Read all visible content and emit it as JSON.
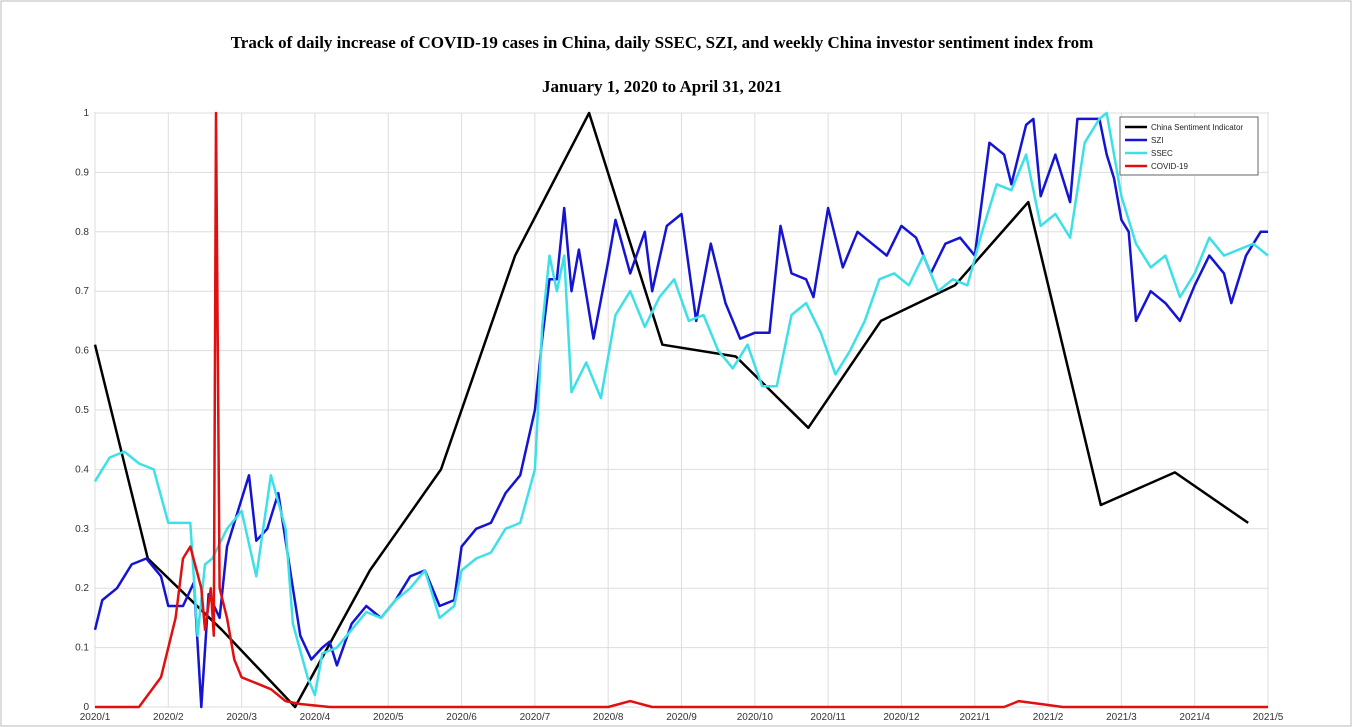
{
  "chart_data": {
    "type": "line",
    "title": "Track of daily increase of COVID-19 cases in China, daily SSEC, SZI, and weekly China investor sentiment index from",
    "subtitle": "January 1, 2020 to April 31, 2021",
    "xlim": [
      0,
      16
    ],
    "xticks": [
      {
        "value": 0,
        "label": "2020/1"
      },
      {
        "value": 1,
        "label": "2020/2"
      },
      {
        "value": 2,
        "label": "2020/3"
      },
      {
        "value": 3,
        "label": "2020/4"
      },
      {
        "value": 4,
        "label": "2020/5"
      },
      {
        "value": 5,
        "label": "2020/6"
      },
      {
        "value": 6,
        "label": "2020/7"
      },
      {
        "value": 7,
        "label": "2020/8"
      },
      {
        "value": 8,
        "label": "2020/9"
      },
      {
        "value": 9,
        "label": "2020/10"
      },
      {
        "value": 10,
        "label": "2020/11"
      },
      {
        "value": 11,
        "label": "2020/12"
      },
      {
        "value": 12,
        "label": "2021/1"
      },
      {
        "value": 13,
        "label": "2021/2"
      },
      {
        "value": 14,
        "label": "2021/3"
      },
      {
        "value": 15,
        "label": "2021/4"
      },
      {
        "value": 16,
        "label": "2021/5"
      }
    ],
    "ylim": [
      0,
      1
    ],
    "yticks": [
      0,
      0.1,
      0.2,
      0.3,
      0.4,
      0.5,
      0.6,
      0.7,
      0.8,
      0.9,
      1
    ],
    "grid": true,
    "legend": "upper-right",
    "series": [
      {
        "name": "China Sentiment Indicator",
        "color": "#000000",
        "x": [
          0,
          0.72,
          1.73,
          2.73,
          3.75,
          4.72,
          5.73,
          6.74,
          7.74,
          8.74,
          9.73,
          10.72,
          11.73,
          12.73,
          13.72,
          14.73,
          15.73
        ],
        "values": [
          0.61,
          0.25,
          0.13,
          0,
          0.23,
          0.4,
          0.76,
          1,
          0.61,
          0.59,
          0.47,
          0.65,
          0.71,
          0.85,
          0.34,
          0.395,
          0.31
        ]
      },
      {
        "name": "SZI",
        "color": "#1414d2",
        "x": [
          0,
          0.1,
          0.3,
          0.5,
          0.7,
          0.9,
          1,
          1.2,
          1.35,
          1.45,
          1.55,
          1.7,
          1.8,
          2,
          2.1,
          2.2,
          2.35,
          2.5,
          2.7,
          2.8,
          2.95,
          3.1,
          3.2,
          3.3,
          3.5,
          3.7,
          3.9,
          4.1,
          4.3,
          4.5,
          4.7,
          4.9,
          5,
          5.2,
          5.4,
          5.6,
          5.8,
          6,
          6.1,
          6.2,
          6.3,
          6.4,
          6.5,
          6.6,
          6.8,
          7,
          7.1,
          7.3,
          7.5,
          7.6,
          7.8,
          8,
          8.2,
          8.4,
          8.6,
          8.8,
          9,
          9.2,
          9.35,
          9.5,
          9.7,
          9.8,
          10,
          10.2,
          10.4,
          10.6,
          10.8,
          11,
          11.2,
          11.4,
          11.6,
          11.8,
          12,
          12.2,
          12.4,
          12.5,
          12.7,
          12.8,
          12.9,
          13.1,
          13.3,
          13.4,
          13.7,
          13.8,
          13.9,
          14,
          14.1,
          14.2,
          14.4,
          14.6,
          14.8,
          15,
          15.2,
          15.4,
          15.5,
          15.7,
          15.9,
          16
        ],
        "values": [
          0.13,
          0.18,
          0.2,
          0.24,
          0.25,
          0.22,
          0.17,
          0.17,
          0.21,
          0,
          0.19,
          0.15,
          0.27,
          0.35,
          0.39,
          0.28,
          0.3,
          0.36,
          0.2,
          0.12,
          0.08,
          0.1,
          0.11,
          0.07,
          0.14,
          0.17,
          0.15,
          0.18,
          0.22,
          0.23,
          0.17,
          0.18,
          0.27,
          0.3,
          0.31,
          0.36,
          0.39,
          0.5,
          0.62,
          0.72,
          0.72,
          0.84,
          0.7,
          0.77,
          0.62,
          0.75,
          0.82,
          0.73,
          0.8,
          0.7,
          0.81,
          0.83,
          0.65,
          0.78,
          0.68,
          0.62,
          0.63,
          0.63,
          0.81,
          0.73,
          0.72,
          0.69,
          0.84,
          0.74,
          0.8,
          0.78,
          0.76,
          0.81,
          0.79,
          0.73,
          0.78,
          0.79,
          0.76,
          0.95,
          0.93,
          0.88,
          0.98,
          0.99,
          0.86,
          0.93,
          0.85,
          0.99,
          0.99,
          0.93,
          0.89,
          0.82,
          0.8,
          0.65,
          0.7,
          0.68,
          0.65,
          0.71,
          0.76,
          0.73,
          0.68,
          0.76,
          0.8,
          0.8
        ]
      },
      {
        "name": "SSEC",
        "color": "#3ee0e8",
        "x": [
          0,
          0.2,
          0.4,
          0.6,
          0.8,
          1,
          1.3,
          1.4,
          1.5,
          1.6,
          1.8,
          2,
          2.2,
          2.4,
          2.6,
          2.7,
          2.9,
          3,
          3.1,
          3.3,
          3.5,
          3.7,
          3.9,
          4.1,
          4.3,
          4.5,
          4.7,
          4.9,
          5,
          5.2,
          5.4,
          5.6,
          5.8,
          6,
          6.1,
          6.2,
          6.3,
          6.4,
          6.5,
          6.7,
          6.9,
          7.1,
          7.3,
          7.5,
          7.7,
          7.9,
          8.1,
          8.3,
          8.5,
          8.7,
          8.9,
          9.1,
          9.3,
          9.5,
          9.7,
          9.9,
          10.1,
          10.3,
          10.5,
          10.7,
          10.9,
          11.1,
          11.3,
          11.5,
          11.7,
          11.9,
          12.1,
          12.3,
          12.5,
          12.7,
          12.9,
          13.1,
          13.3,
          13.5,
          13.7,
          13.8,
          14,
          14.2,
          14.4,
          14.6,
          14.8,
          15,
          15.2,
          15.4,
          15.6,
          15.8,
          16
        ],
        "values": [
          0.38,
          0.42,
          0.43,
          0.41,
          0.4,
          0.31,
          0.31,
          0.12,
          0.24,
          0.25,
          0.3,
          0.33,
          0.22,
          0.39,
          0.3,
          0.14,
          0.05,
          0.02,
          0.09,
          0.1,
          0.13,
          0.16,
          0.15,
          0.18,
          0.2,
          0.23,
          0.15,
          0.17,
          0.23,
          0.25,
          0.26,
          0.3,
          0.31,
          0.4,
          0.64,
          0.76,
          0.7,
          0.76,
          0.53,
          0.58,
          0.52,
          0.66,
          0.7,
          0.64,
          0.69,
          0.72,
          0.65,
          0.66,
          0.6,
          0.57,
          0.61,
          0.54,
          0.54,
          0.66,
          0.68,
          0.63,
          0.56,
          0.6,
          0.65,
          0.72,
          0.73,
          0.71,
          0.76,
          0.7,
          0.72,
          0.71,
          0.8,
          0.88,
          0.87,
          0.93,
          0.81,
          0.83,
          0.79,
          0.95,
          0.99,
          1,
          0.86,
          0.78,
          0.74,
          0.76,
          0.69,
          0.73,
          0.79,
          0.76,
          0.77,
          0.78,
          0.76
        ]
      },
      {
        "name": "COVID-19",
        "color": "#e01010",
        "x": [
          0,
          0.6,
          0.9,
          1.1,
          1.2,
          1.3,
          1.45,
          1.5,
          1.58,
          1.62,
          1.65,
          1.7,
          1.8,
          1.9,
          2,
          2.2,
          2.4,
          2.6,
          2.8,
          3.2,
          7,
          7.3,
          7.6,
          12.4,
          12.6,
          12.9,
          13.2,
          16
        ],
        "values": [
          0,
          0,
          0.05,
          0.15,
          0.25,
          0.27,
          0.2,
          0.13,
          0.2,
          0.12,
          1,
          0.2,
          0.15,
          0.08,
          0.05,
          0.04,
          0.03,
          0.01,
          0.005,
          0,
          0,
          0.01,
          0,
          0,
          0.01,
          0.005,
          0,
          0
        ]
      }
    ]
  }
}
